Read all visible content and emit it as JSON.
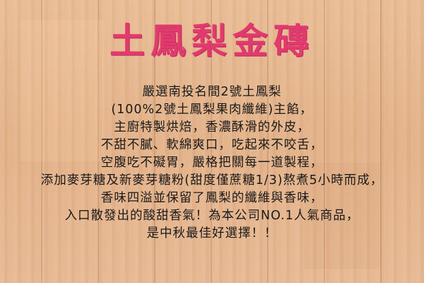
{
  "title": "土鳳梨金磚",
  "lines": [
    "嚴選南投名間2號土鳳梨",
    "(100%2號土鳳梨果肉纖維)主餡，",
    "主廚特製烘焙，香濃酥滑的外皮，",
    "不甜不膩、軟綿爽口，吃起來不咬舌，",
    "空腹吃不礙胃，嚴格把關每一道製程，",
    "添加麥芽糖及新麥芽糖粉(甜度僅蔗糖1/3)熬煮5小時而成，",
    "香味四溢並保留了鳳梨的纖維與香味，",
    "入口散發出的酸甜香氣！為本公司NO.1人氣商品，",
    "是中秋最佳好選擇！！"
  ],
  "colors": {
    "title": "#e03a6e",
    "text": "#1a1a1a",
    "background": "#e6b88f"
  }
}
